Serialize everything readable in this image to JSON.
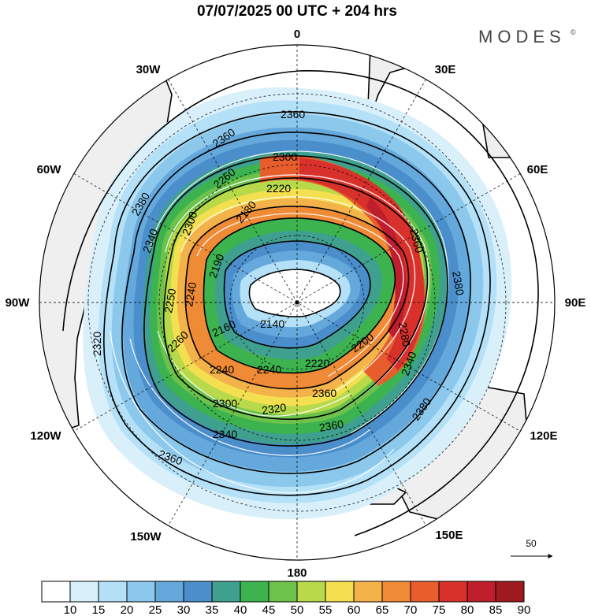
{
  "header": {
    "title": "07/07/2025  00 UTC  + 204 hrs",
    "brand": "MODES",
    "brand_mark": "©"
  },
  "longitude_labels": {
    "n0": "0",
    "e30": "30E",
    "e60": "60E",
    "e90": "90E",
    "e120": "120E",
    "e150": "150E",
    "s180": "180",
    "w150": "150W",
    "w120": "120W",
    "w90": "90W",
    "w60": "60W",
    "w30": "30W"
  },
  "contour_labels": {
    "c1": "2360",
    "c2": "2360",
    "c3": "2380",
    "c4": "2340",
    "c5": "2300",
    "c6": "2260",
    "c7": "2300",
    "c8": "2220",
    "c9": "2180",
    "c10": "2190",
    "c11": "2360",
    "c12": "2380",
    "c13": "2320",
    "c14": "2250",
    "c15": "2260",
    "c16": "2140",
    "c17": "2160",
    "c18": "2240",
    "c19": "2240",
    "c20": "2220",
    "c21": "2200",
    "c22": "2360",
    "c23": "2340",
    "c24": "2300",
    "c25": "2320",
    "c26": "2340",
    "c27": "2360",
    "c28": "2360",
    "c29": "2380",
    "c30": "2280",
    "c31": "2240"
  },
  "vector_reference": {
    "label": "50"
  },
  "colorbar": {
    "colors": [
      "#ffffff",
      "#d9f0fb",
      "#b4e1f7",
      "#8cc8ec",
      "#64a8dc",
      "#4a8ecb",
      "#3fa08f",
      "#3db34f",
      "#6cc24a",
      "#b7d94a",
      "#f3df4f",
      "#f4b24a",
      "#ef8a36",
      "#e85d2c",
      "#d8312b",
      "#bf1e2d",
      "#9e1a1f"
    ],
    "ticks": [
      "10",
      "15",
      "20",
      "25",
      "30",
      "35",
      "40",
      "45",
      "50",
      "55",
      "60",
      "65",
      "70",
      "75",
      "80",
      "85",
      "90"
    ]
  }
}
